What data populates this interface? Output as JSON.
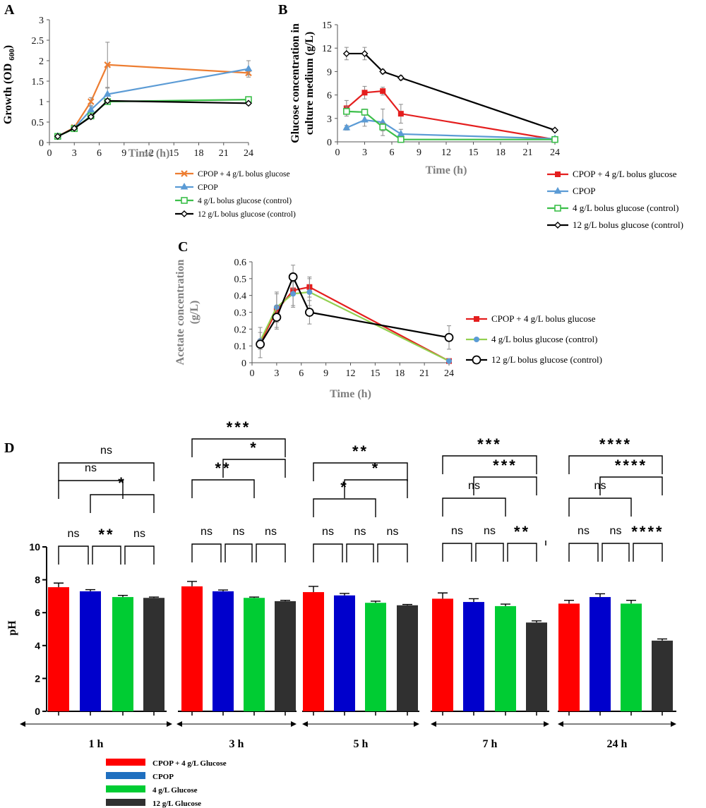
{
  "chart_data": [
    {
      "panel_label": "A",
      "type": "line",
      "xlabel": "Time (h)",
      "ylabel_main": "Growth (OD",
      "ylabel_sub": "600",
      "ylabel_close": ")",
      "xlim": [
        0,
        24
      ],
      "ylim": [
        0,
        3
      ],
      "xticks": [
        0,
        3,
        6,
        9,
        12,
        15,
        18,
        21,
        24
      ],
      "yticks": [
        0,
        0.5,
        1,
        1.5,
        2,
        2.5,
        3
      ],
      "legend_position": "below",
      "series": [
        {
          "name": "CPOP + 4 g/L bolus glucose",
          "color": "#ed7d31",
          "marker": "x",
          "points": [
            [
              1,
              0.15
            ],
            [
              3,
              0.37
            ],
            [
              5,
              1.0
            ],
            [
              7,
              1.9
            ],
            [
              24,
              1.7
            ]
          ],
          "err": [
            0.02,
            0.03,
            0.1,
            0.55,
            0.05
          ]
        },
        {
          "name": "CPOP",
          "color": "#5b9bd5",
          "marker": "triangle",
          "points": [
            [
              1,
              0.15
            ],
            [
              3,
              0.35
            ],
            [
              5,
              0.8
            ],
            [
              7,
              1.18
            ],
            [
              24,
              1.8
            ]
          ],
          "err": [
            0.02,
            0.03,
            0.08,
            0.15,
            0.2
          ]
        },
        {
          "name": "4 g/L bolus glucose (control)",
          "color": "#3cbf4a",
          "marker": "square-open",
          "points": [
            [
              1,
              0.15
            ],
            [
              3,
              0.34
            ],
            [
              5,
              0.65
            ],
            [
              7,
              1.0
            ],
            [
              24,
              1.05
            ]
          ],
          "err": [
            0.02,
            0.02,
            0.05,
            0.05,
            0.05
          ]
        },
        {
          "name": "12 g/L bolus glucose (control)",
          "color": "#000000",
          "marker": "diamond-open",
          "points": [
            [
              1,
              0.15
            ],
            [
              3,
              0.35
            ],
            [
              5,
              0.63
            ],
            [
              7,
              1.02
            ],
            [
              24,
              0.96
            ]
          ],
          "err": [
            0.02,
            0.02,
            0.04,
            0.05,
            0.04
          ]
        }
      ]
    },
    {
      "panel_label": "B",
      "type": "line",
      "xlabel": "Time (h)",
      "ylabel_line1": "Glucose concentration in",
      "ylabel_line2": "culture medium (g/L)",
      "xlim": [
        0,
        24
      ],
      "ylim": [
        0,
        15
      ],
      "xticks": [
        0,
        3,
        6,
        9,
        12,
        15,
        18,
        21,
        24
      ],
      "yticks": [
        0,
        3,
        6,
        9,
        12,
        15
      ],
      "legend_position": "below-right",
      "series": [
        {
          "name": "CPOP + 4 g/L bolus glucose",
          "color": "#e41e1e",
          "marker": "square",
          "points": [
            [
              1,
              4.3
            ],
            [
              3,
              6.3
            ],
            [
              5,
              6.5
            ],
            [
              7,
              3.6
            ],
            [
              24,
              0.3
            ]
          ],
          "err": [
            1.0,
            0.8,
            0.5,
            1.2,
            0.1
          ]
        },
        {
          "name": "CPOP",
          "color": "#5b9bd5",
          "marker": "triangle",
          "points": [
            [
              1,
              1.8
            ],
            [
              3,
              2.8
            ],
            [
              5,
              2.5
            ],
            [
              7,
              1.0
            ],
            [
              24,
              0.4
            ]
          ],
          "err": [
            0.3,
            0.8,
            1.7,
            0.6,
            0.1
          ]
        },
        {
          "name": "4 g/L bolus glucose (control)",
          "color": "#3cbf4a",
          "marker": "square-open",
          "points": [
            [
              1,
              3.9
            ],
            [
              3,
              3.8
            ],
            [
              5,
              1.9
            ],
            [
              7,
              0.3
            ],
            [
              24,
              0.3
            ]
          ],
          "err": [
            0.6,
            0.4,
            0.5,
            0.1,
            0.1
          ]
        },
        {
          "name": "12 g/L bolus glucose (control)",
          "color": "#000000",
          "marker": "diamond-open",
          "points": [
            [
              1,
              11.3
            ],
            [
              3,
              11.3
            ],
            [
              5,
              9.0
            ],
            [
              7,
              8.2
            ],
            [
              24,
              1.5
            ]
          ],
          "err": [
            0.8,
            0.8,
            0.3,
            0.3,
            0.1
          ]
        }
      ]
    },
    {
      "panel_label": "C",
      "type": "line",
      "xlabel": "Time (h)",
      "ylabel_line1": "Acetate concentration",
      "ylabel_line2": "(g/L)",
      "xlim": [
        0,
        24
      ],
      "ylim": [
        0,
        0.6
      ],
      "xticks": [
        0,
        3,
        6,
        9,
        12,
        15,
        18,
        21,
        24
      ],
      "yticks": [
        0,
        0.1,
        0.2,
        0.3,
        0.4,
        0.5,
        0.6
      ],
      "legend_position": "right",
      "series": [
        {
          "name": "CPOP + 4 g/L bolus glucose",
          "color": "#e41e1e",
          "marker": "square",
          "points": [
            [
              1,
              0.12
            ],
            [
              3,
              0.31
            ],
            [
              5,
              0.43
            ],
            [
              7,
              0.45
            ],
            [
              24,
              0.01
            ]
          ],
          "err": [
            0.09,
            0.1,
            0.1,
            0.06,
            0.0
          ]
        },
        {
          "name": "4 g/L bolus glucose (control)",
          "color": "#92d050",
          "marker": "circle-blue",
          "points": [
            [
              1,
              0.13
            ],
            [
              3,
              0.33
            ],
            [
              5,
              0.41
            ],
            [
              7,
              0.42
            ],
            [
              24,
              0.01
            ]
          ],
          "err": [
            0.05,
            0.09,
            0.07,
            0.08,
            0.0
          ]
        },
        {
          "name": "12 g/L bolus glucose (control)",
          "color": "#000000",
          "marker": "circle-open",
          "points": [
            [
              1,
              0.11
            ],
            [
              3,
              0.27
            ],
            [
              5,
              0.51
            ],
            [
              7,
              0.3
            ],
            [
              24,
              0.15
            ]
          ],
          "err": [
            0.03,
            0.07,
            0.07,
            0.07,
            0.07
          ]
        }
      ]
    },
    {
      "panel_label": "D",
      "type": "bar",
      "ylabel": "pH",
      "ylim": [
        0,
        10
      ],
      "yticks": [
        0,
        2,
        4,
        6,
        8,
        10
      ],
      "groups": [
        "1 h",
        "3 h",
        "5 h",
        "7 h",
        "24 h"
      ],
      "series": [
        {
          "name": "CPOP + 4  g/L Glucose",
          "color": "#ff0000",
          "values": [
            7.55,
            7.6,
            7.25,
            6.85,
            6.55
          ],
          "err": [
            0.25,
            0.3,
            0.35,
            0.35,
            0.2
          ]
        },
        {
          "name": "CPOP",
          "color": "#0000cc",
          "legend_color": "#1f6fbf",
          "values": [
            7.3,
            7.3,
            7.05,
            6.65,
            6.95
          ],
          "err": [
            0.1,
            0.08,
            0.12,
            0.2,
            0.2
          ]
        },
        {
          "name": "4  g/L Glucose",
          "color": "#00cc33",
          "values": [
            6.95,
            6.9,
            6.6,
            6.4,
            6.55
          ],
          "err": [
            0.1,
            0.05,
            0.1,
            0.12,
            0.2
          ]
        },
        {
          "name": "12 g/L Glucose",
          "color": "#303030",
          "values": [
            6.9,
            6.7,
            6.45,
            5.4,
            4.3
          ],
          "err": [
            0.05,
            0.05,
            0.05,
            0.1,
            0.1
          ]
        }
      ],
      "significance": [
        [
          {
            "a": 0,
            "b": 3,
            "label": "ns"
          },
          {
            "a": 1,
            "b": 3,
            "label": "*"
          },
          {
            "a": 0,
            "b": 2,
            "label": "ns"
          },
          {
            "a": 0,
            "b": 1,
            "label": "ns"
          },
          {
            "a": 1,
            "b": 2,
            "label": "**"
          },
          {
            "a": 2,
            "b": 3,
            "label": "ns"
          }
        ],
        [
          {
            "a": 0,
            "b": 3,
            "label": "***"
          },
          {
            "a": 1,
            "b": 3,
            "label": "*"
          },
          {
            "a": 0,
            "b": 2,
            "label": "**"
          },
          {
            "a": 0,
            "b": 1,
            "label": "ns"
          },
          {
            "a": 1,
            "b": 2,
            "label": "ns"
          },
          {
            "a": 2,
            "b": 3,
            "label": "ns"
          }
        ],
        [
          {
            "a": 0,
            "b": 3,
            "label": "**"
          },
          {
            "a": 1,
            "b": 3,
            "label": "*"
          },
          {
            "a": 0,
            "b": 2,
            "label": "*"
          },
          {
            "a": 0,
            "b": 1,
            "label": "ns"
          },
          {
            "a": 1,
            "b": 2,
            "label": "ns"
          },
          {
            "a": 2,
            "b": 3,
            "label": "ns"
          }
        ],
        [
          {
            "a": 0,
            "b": 3,
            "label": "***"
          },
          {
            "a": 1,
            "b": 3,
            "label": "***"
          },
          {
            "a": 0,
            "b": 2,
            "label": "ns"
          },
          {
            "a": 0,
            "b": 1,
            "label": "ns"
          },
          {
            "a": 1,
            "b": 2,
            "label": "ns"
          },
          {
            "a": 2,
            "b": 3,
            "label": "**"
          }
        ],
        [
          {
            "a": 0,
            "b": 3,
            "label": "****"
          },
          {
            "a": 1,
            "b": 3,
            "label": "****"
          },
          {
            "a": 0,
            "b": 2,
            "label": "ns"
          },
          {
            "a": 0,
            "b": 1,
            "label": "ns"
          },
          {
            "a": 1,
            "b": 2,
            "label": "ns"
          },
          {
            "a": 2,
            "b": 3,
            "label": "****"
          }
        ]
      ]
    }
  ]
}
